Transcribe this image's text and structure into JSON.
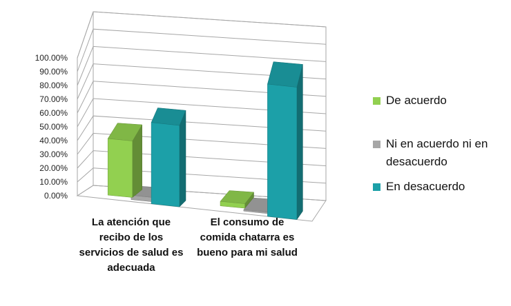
{
  "chart_data": {
    "type": "bar",
    "subtype": "3d-clustered-column",
    "categories": [
      "La atención que recibo de los servicios de salud es adecuada",
      "El consumo de comida chatarra es bueno para mi salud"
    ],
    "category_lines": [
      [
        "La atención que",
        "recibo de los",
        "servicios de salud es",
        "adecuada"
      ],
      [
        "El consumo de",
        "comida chatarra es",
        "bueno para mi salud"
      ]
    ],
    "series": [
      {
        "name": "De acuerdo",
        "values": [
          38.0,
          3.0
        ],
        "color": "#92D050"
      },
      {
        "name": "Ni en acuerdo ni en desacuerdo",
        "values": [
          3.0,
          1.0
        ],
        "color": "#A6A6A6"
      },
      {
        "name": "En desacuerdo",
        "values": [
          59.0,
          96.0
        ],
        "color": "#1CA0A8"
      }
    ],
    "ylim": [
      0,
      100
    ],
    "y_tick_labels": [
      "0.00%",
      "10.00%",
      "20.00%",
      "30.00%",
      "40.00%",
      "50.00%",
      "60.00%",
      "70.00%",
      "80.00%",
      "90.00%",
      "100.00%"
    ],
    "grid": true,
    "legend_position": "right",
    "legend_lines": [
      [
        "De acuerdo"
      ],
      [
        "Ni en acuerdo ni en",
        "desacuerdo"
      ],
      [
        "En desacuerdo"
      ]
    ]
  }
}
